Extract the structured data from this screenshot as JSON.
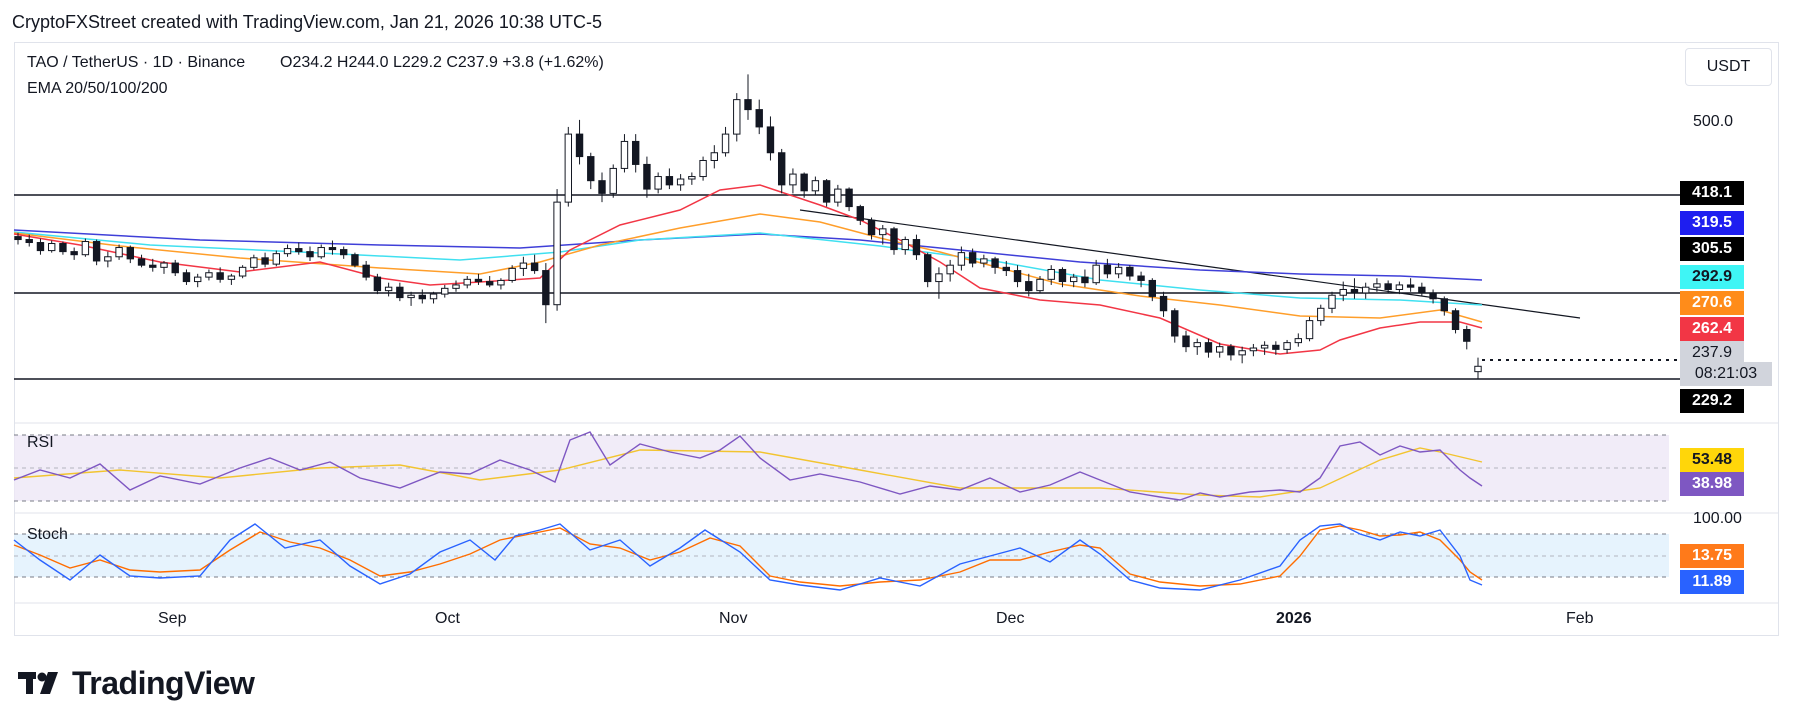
{
  "header": {
    "attribution": "CryptoFXStreet created with TradingView.com, Jan 21, 2026 10:38 UTC-5",
    "symbol": "TAO / TetherUS · 1D · Binance",
    "ohlc": "O234.2  H244.0  L229.2  C237.9  +3.8 (+1.62%)",
    "indicator": "EMA 20/50/100/200",
    "currency": "USDT"
  },
  "panels": {
    "rsi_label": "RSI",
    "stoch_label": "Stoch"
  },
  "price_tags": [
    {
      "label": "418.1",
      "bg": "#000000",
      "fg": "#ffffff"
    },
    {
      "label": "319.5",
      "bg": "#1e1ef0",
      "fg": "#ffffff"
    },
    {
      "label": "305.5",
      "bg": "#000000",
      "fg": "#ffffff"
    },
    {
      "label": "292.9",
      "bg": "#3ff5f5",
      "fg": "#131722"
    },
    {
      "label": "270.6",
      "bg": "#ff8c1a",
      "fg": "#ffffff"
    },
    {
      "label": "262.4",
      "bg": "#f23645",
      "fg": "#ffffff"
    },
    {
      "label": "237.9",
      "bg": "#d1d4dc",
      "fg": "#131722"
    },
    {
      "label": "08:21:03",
      "bg": "#d1d4dc",
      "fg": "#131722"
    },
    {
      "label": "229.2",
      "bg": "#000000",
      "fg": "#ffffff"
    }
  ],
  "axis": {
    "price_label": "500.0",
    "stoch_top": "100.00"
  },
  "indicator_tags": {
    "rsi_ma": {
      "label": "53.48",
      "bg": "#ffd60a",
      "fg": "#131722"
    },
    "rsi": {
      "label": "38.98",
      "bg": "#7e57c2",
      "fg": "#ffffff"
    },
    "stoch_d": {
      "label": "13.75",
      "bg": "#ff7a1a",
      "fg": "#ffffff"
    },
    "stoch_k": {
      "label": "11.89",
      "bg": "#2962ff",
      "fg": "#ffffff"
    }
  },
  "months": [
    "Sep",
    "Oct",
    "Nov",
    "Dec",
    "2026",
    "Feb"
  ],
  "logo": "TradingView",
  "chart_data": {
    "type": "candlestick",
    "title": "TAO / TetherUS · 1D · Binance",
    "ylabel": "USDT",
    "scale": "log",
    "price_levels": [
      418.1,
      305.5,
      229.2
    ],
    "last_price": 237.9,
    "ema_last": {
      "EMA20": 262.4,
      "EMA50": 270.6,
      "EMA100": 292.9,
      "EMA200": 319.5
    },
    "candles": [
      [
        348,
        352,
        340,
        345
      ],
      [
        345,
        350,
        338,
        342
      ],
      [
        342,
        346,
        330,
        334
      ],
      [
        334,
        344,
        332,
        341
      ],
      [
        341,
        343,
        330,
        333
      ],
      [
        333,
        337,
        325,
        330
      ],
      [
        330,
        346,
        328,
        343
      ],
      [
        343,
        345,
        320,
        324
      ],
      [
        324,
        333,
        318,
        328
      ],
      [
        328,
        340,
        325,
        337
      ],
      [
        337,
        339,
        322,
        326
      ],
      [
        326,
        330,
        318,
        320
      ],
      [
        320,
        326,
        314,
        318
      ],
      [
        318,
        324,
        312,
        322
      ],
      [
        322,
        325,
        310,
        313
      ],
      [
        313,
        316,
        302,
        305
      ],
      [
        305,
        312,
        300,
        309
      ],
      [
        309,
        316,
        306,
        313
      ],
      [
        313,
        318,
        304,
        307
      ],
      [
        307,
        312,
        302,
        310
      ],
      [
        310,
        320,
        308,
        318
      ],
      [
        318,
        330,
        316,
        327
      ],
      [
        327,
        332,
        318,
        321
      ],
      [
        321,
        334,
        319,
        331
      ],
      [
        331,
        340,
        328,
        336
      ],
      [
        336,
        342,
        330,
        333
      ],
      [
        333,
        338,
        324,
        328
      ],
      [
        328,
        340,
        326,
        337
      ],
      [
        337,
        344,
        330,
        335
      ],
      [
        335,
        338,
        326,
        330
      ],
      [
        330,
        332,
        318,
        320
      ],
      [
        320,
        324,
        306,
        309
      ],
      [
        309,
        312,
        294,
        297
      ],
      [
        297,
        304,
        292,
        300
      ],
      [
        300,
        304,
        288,
        291
      ],
      [
        291,
        296,
        284,
        293
      ],
      [
        293,
        298,
        286,
        290
      ],
      [
        290,
        296,
        286,
        294
      ],
      [
        294,
        302,
        291,
        299
      ],
      [
        299,
        306,
        296,
        302
      ],
      [
        302,
        310,
        299,
        307
      ],
      [
        307,
        312,
        302,
        305
      ],
      [
        305,
        310,
        300,
        302
      ],
      [
        302,
        308,
        298,
        306
      ],
      [
        306,
        320,
        304,
        317
      ],
      [
        317,
        328,
        310,
        322
      ],
      [
        322,
        330,
        312,
        315
      ],
      [
        315,
        322,
        270,
        285
      ],
      [
        285,
        400,
        280,
        385
      ],
      [
        385,
        480,
        380,
        470
      ],
      [
        470,
        490,
        430,
        440
      ],
      [
        440,
        445,
        400,
        410
      ],
      [
        410,
        420,
        385,
        395
      ],
      [
        395,
        430,
        390,
        425
      ],
      [
        425,
        470,
        420,
        460
      ],
      [
        460,
        470,
        420,
        430
      ],
      [
        430,
        440,
        390,
        400
      ],
      [
        400,
        420,
        395,
        415
      ],
      [
        415,
        425,
        400,
        405
      ],
      [
        405,
        418,
        398,
        412
      ],
      [
        412,
        420,
        405,
        415
      ],
      [
        415,
        440,
        410,
        435
      ],
      [
        435,
        455,
        425,
        445
      ],
      [
        445,
        480,
        440,
        470
      ],
      [
        470,
        530,
        460,
        520
      ],
      [
        520,
        560,
        490,
        505
      ],
      [
        505,
        520,
        470,
        480
      ],
      [
        480,
        495,
        435,
        445
      ],
      [
        445,
        450,
        395,
        405
      ],
      [
        405,
        425,
        395,
        418
      ],
      [
        418,
        420,
        390,
        398
      ],
      [
        398,
        415,
        393,
        410
      ],
      [
        410,
        412,
        380,
        385
      ],
      [
        385,
        405,
        380,
        400
      ],
      [
        400,
        402,
        375,
        380
      ],
      [
        380,
        382,
        360,
        365
      ],
      [
        365,
        368,
        345,
        350
      ],
      [
        350,
        360,
        340,
        356
      ],
      [
        356,
        358,
        330,
        335
      ],
      [
        335,
        348,
        330,
        345
      ],
      [
        345,
        350,
        325,
        330
      ],
      [
        330,
        332,
        300,
        305
      ],
      [
        305,
        318,
        290,
        312
      ],
      [
        312,
        325,
        305,
        320
      ],
      [
        320,
        338,
        315,
        332
      ],
      [
        332,
        336,
        318,
        322
      ],
      [
        322,
        330,
        318,
        326
      ],
      [
        326,
        328,
        312,
        318
      ],
      [
        318,
        324,
        310,
        315
      ],
      [
        315,
        320,
        300,
        305
      ],
      [
        305,
        312,
        292,
        297
      ],
      [
        297,
        310,
        295,
        307
      ],
      [
        307,
        320,
        302,
        316
      ],
      [
        316,
        318,
        300,
        305
      ],
      [
        305,
        312,
        300,
        309
      ],
      [
        309,
        316,
        300,
        304
      ],
      [
        304,
        325,
        302,
        320
      ],
      [
        320,
        326,
        308,
        312
      ],
      [
        312,
        322,
        308,
        318
      ],
      [
        318,
        320,
        306,
        310
      ],
      [
        310,
        314,
        300,
        306
      ],
      [
        306,
        308,
        288,
        292
      ],
      [
        292,
        296,
        275,
        280
      ],
      [
        280,
        282,
        255,
        260
      ],
      [
        260,
        264,
        248,
        252
      ],
      [
        252,
        258,
        246,
        255
      ],
      [
        255,
        258,
        244,
        248
      ],
      [
        248,
        255,
        244,
        252
      ],
      [
        252,
        254,
        242,
        246
      ],
      [
        246,
        252,
        240,
        249
      ],
      [
        249,
        254,
        245,
        251
      ],
      [
        251,
        256,
        246,
        253
      ],
      [
        253,
        256,
        246,
        250
      ],
      [
        250,
        257,
        247,
        255
      ],
      [
        255,
        262,
        252,
        258
      ],
      [
        258,
        275,
        256,
        272
      ],
      [
        272,
        285,
        268,
        282
      ],
      [
        282,
        296,
        278,
        293
      ],
      [
        293,
        305,
        288,
        298
      ],
      [
        298,
        308,
        290,
        295
      ],
      [
        295,
        304,
        290,
        300
      ],
      [
        300,
        308,
        296,
        303
      ],
      [
        303,
        306,
        295,
        298
      ],
      [
        298,
        305,
        294,
        302
      ],
      [
        302,
        308,
        296,
        300
      ],
      [
        300,
        304,
        292,
        295
      ],
      [
        295,
        298,
        286,
        290
      ],
      [
        290,
        292,
        276,
        280
      ],
      [
        280,
        282,
        262,
        265
      ],
      [
        265,
        268,
        250,
        256
      ],
      [
        234.2,
        244,
        229.2,
        237.9
      ]
    ]
  }
}
